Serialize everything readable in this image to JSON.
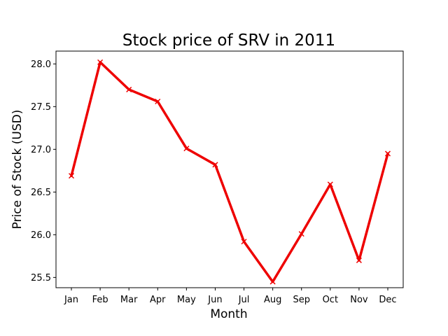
{
  "chart_data": {
    "type": "line",
    "title": "Stock price of SRV in 2011",
    "xlabel": "Month",
    "ylabel": "Price of Stock (USD)",
    "categories": [
      "Jan",
      "Feb",
      "Mar",
      "Apr",
      "May",
      "Jun",
      "Jul",
      "Aug",
      "Sep",
      "Oct",
      "Nov",
      "Dec"
    ],
    "series": [
      {
        "values": [
          26.69,
          28.02,
          27.7,
          27.56,
          27.01,
          26.82,
          25.92,
          25.45,
          26.01,
          26.59,
          25.7,
          26.95
        ],
        "color": "#ee0000",
        "marker": "x"
      }
    ],
    "ylim": [
      25.38,
      28.15
    ],
    "yticks": [
      25.5,
      26.0,
      26.5,
      27.0,
      27.5,
      28.0
    ],
    "ytick_labels": [
      "25.5",
      "26.0",
      "26.5",
      "27.0",
      "27.5",
      "28.0"
    ],
    "grid": false,
    "legend": false
  }
}
